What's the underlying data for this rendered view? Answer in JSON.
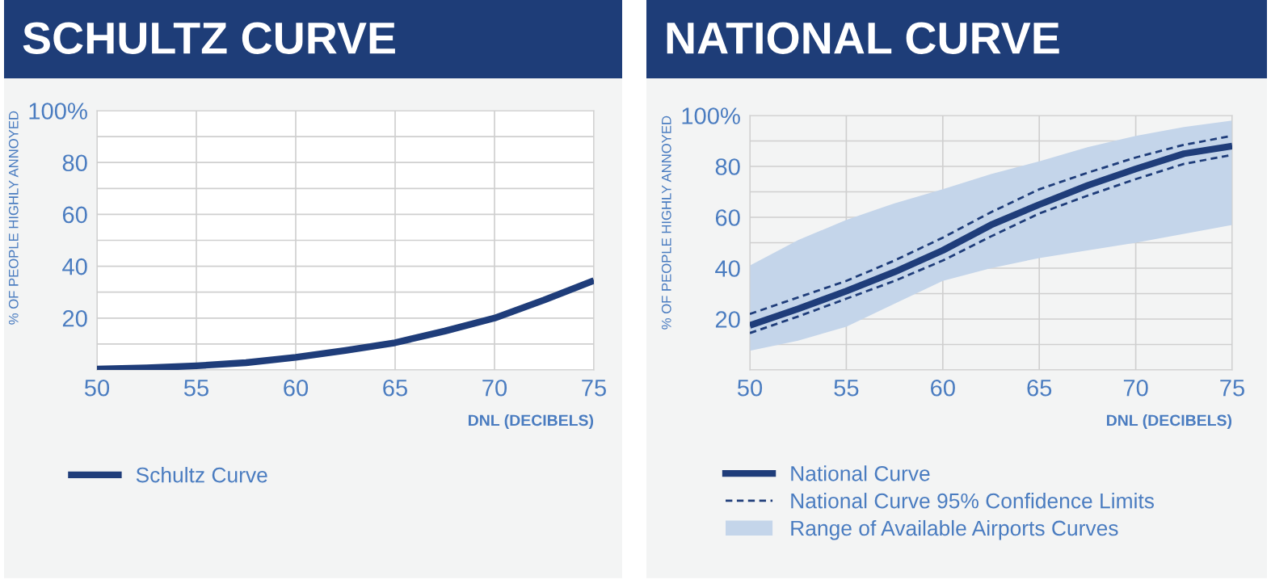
{
  "chart_data": [
    {
      "type": "line",
      "title": "SCHULTZ CURVE",
      "xlabel": "DNL (DECIBELS)",
      "ylabel": "% OF PEOPLE HIGHLY ANNOYED",
      "xlim": [
        50,
        75
      ],
      "xticks": [
        50,
        55,
        60,
        65,
        70,
        75
      ],
      "ylim": [
        0,
        100
      ],
      "yticks": [
        {
          "value": 0,
          "label": null
        },
        {
          "value": 10,
          "label": null
        },
        20,
        {
          "value": 30,
          "label": null
        },
        40,
        {
          "value": 50,
          "label": null
        },
        60,
        {
          "value": 70,
          "label": null
        },
        80,
        {
          "value": 90,
          "label": null
        },
        {
          "value": 100,
          "label": "100%"
        }
      ],
      "grid": true,
      "legend": "bottom left",
      "series": [
        {
          "name": "Schultz Curve",
          "color": "#1f3d7a",
          "line_style": "solid",
          "x": [
            50,
            52.5,
            55,
            57.5,
            60,
            62.5,
            65,
            67.5,
            70,
            72.5,
            75
          ],
          "values": [
            0.3,
            0.8,
            1.6,
            2.8,
            4.9,
            7.5,
            10.5,
            15,
            20,
            27,
            34.5
          ]
        }
      ]
    },
    {
      "type": "line",
      "title": "NATIONAL CURVE",
      "xlabel": "DNL (DECIBELS)",
      "ylabel": "% OF PEOPLE HIGHLY ANNOYED",
      "xlim": [
        50,
        75
      ],
      "xticks": [
        50,
        55,
        60,
        65,
        70,
        75
      ],
      "ylim": [
        0,
        100
      ],
      "yticks": [
        {
          "value": 0,
          "label": null
        },
        {
          "value": 10,
          "label": null
        },
        20,
        {
          "value": 30,
          "label": null
        },
        40,
        {
          "value": 50,
          "label": null
        },
        60,
        {
          "value": 70,
          "label": null
        },
        80,
        {
          "value": 90,
          "label": null
        },
        {
          "value": 100,
          "label": "100%"
        }
      ],
      "grid": true,
      "legend": "bottom left",
      "series": [
        {
          "name": "National Curve",
          "color": "#1f3d7a",
          "line_style": "solid",
          "x": [
            50,
            52.5,
            55,
            57.5,
            60,
            62.5,
            65,
            67.5,
            70,
            72.5,
            75
          ],
          "values": [
            17.5,
            24,
            31,
            38.5,
            47,
            57,
            65,
            72.5,
            79,
            85,
            88
          ]
        },
        {
          "name": "Range of Available Airports Curves",
          "type": "line",
          "color": "#c4d5ea",
          "x": [
            50,
            52.5,
            55,
            57.5,
            60,
            62.5,
            65,
            67.5,
            70,
            72.5,
            75
          ],
          "values": [
            null,
            null,
            null,
            null,
            null,
            null,
            null,
            null,
            null,
            null,
            null
          ],
          "lower": [
            7.5,
            11.5,
            17,
            26,
            35,
            40,
            44,
            47,
            50,
            53.5,
            57
          ],
          "upper": [
            41,
            51,
            59,
            65.5,
            71,
            77,
            82,
            87.5,
            92,
            95.5,
            98
          ]
        },
        {
          "name": "National Curve 95% Confidence Limits",
          "color": "#1f3d7a",
          "line_style": "dashed",
          "x": [
            50,
            52.5,
            55,
            57.5,
            60,
            62.5,
            65,
            67.5,
            70,
            72.5,
            75
          ],
          "values": [
            22,
            28.5,
            35,
            43,
            52,
            62,
            71,
            77.5,
            83.5,
            88.5,
            92
          ]
        },
        {
          "color": "#1f3d7a",
          "line_style": "dashed",
          "x": [
            50,
            52.5,
            55,
            57.5,
            60,
            62.5,
            65,
            67.5,
            70,
            72.5,
            75
          ],
          "values": [
            14.5,
            21,
            28,
            35,
            43,
            52.5,
            61.5,
            68.5,
            75,
            81,
            84.5
          ]
        }
      ]
    }
  ]
}
